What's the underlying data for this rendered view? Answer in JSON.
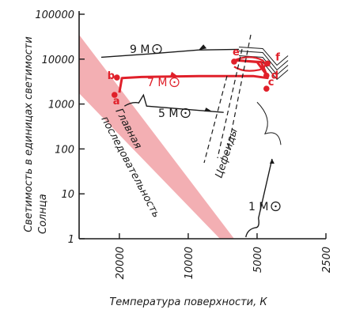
{
  "chart_data": {
    "type": "line",
    "xlabel": "Температура поверхности, К",
    "ylabel_line1": "Светимость в единицах светимости",
    "ylabel_line2": "Солнца",
    "x_scale": "log-reversed",
    "y_scale": "log",
    "xlim": [
      30000,
      2500
    ],
    "ylim": [
      1,
      100000
    ],
    "x_ticks": [
      "20000",
      "10000",
      "5000",
      "2500"
    ],
    "y_ticks": [
      "1",
      "10",
      "100",
      "1000",
      "10000",
      "100000"
    ],
    "main_sequence_label_1": "Главная",
    "main_sequence_label_2": "последовательность",
    "cepheids_label": "Цефеиды",
    "tracks": [
      {
        "name": "9 M☉",
        "mass": "9 M",
        "highlight": false,
        "points": [
          [
            24000,
            11000
          ],
          [
            15000,
            13000
          ],
          [
            9000,
            16000
          ],
          [
            6000,
            16500
          ]
        ]
      },
      {
        "name": "5 M☉",
        "mass": "5 M",
        "highlight": false,
        "points": [
          [
            19000,
            900
          ],
          [
            13000,
            800
          ],
          [
            9000,
            700
          ],
          [
            7000,
            650
          ]
        ]
      },
      {
        "name": "1 M☉",
        "mass": "1 M",
        "highlight": false,
        "points": [
          [
            5600,
            1
          ],
          [
            5000,
            1.6
          ],
          [
            4600,
            6
          ],
          [
            4300,
            60
          ]
        ]
      },
      {
        "name": "7 M☉",
        "mass": "7 M",
        "highlight": true,
        "points": [
          [
            20000,
            1800
          ],
          [
            19500,
            3800
          ],
          [
            16000,
            4000
          ],
          [
            9000,
            4200
          ],
          [
            5200,
            4200
          ],
          [
            4500,
            3800
          ],
          [
            4550,
            4600
          ],
          [
            4800,
            8600
          ],
          [
            6200,
            9400
          ],
          [
            5000,
            8600
          ],
          [
            4500,
            4200
          ]
        ]
      }
    ],
    "points": [
      {
        "label": "a",
        "x": 21000,
        "y": 1600
      },
      {
        "label": "b",
        "x": 20500,
        "y": 3900
      },
      {
        "label": "c",
        "x": 4550,
        "y": 2200
      },
      {
        "label": "d",
        "x": 4550,
        "y": 4300
      },
      {
        "label": "e",
        "x": 6300,
        "y": 8800
      },
      {
        "label": "f",
        "x": 4500,
        "y": 8000
      }
    ],
    "colors": {
      "band": "#f2a6ab",
      "highlight": "#e0202a",
      "ink": "#1a1a1a"
    },
    "grid": false,
    "legend": "none"
  }
}
